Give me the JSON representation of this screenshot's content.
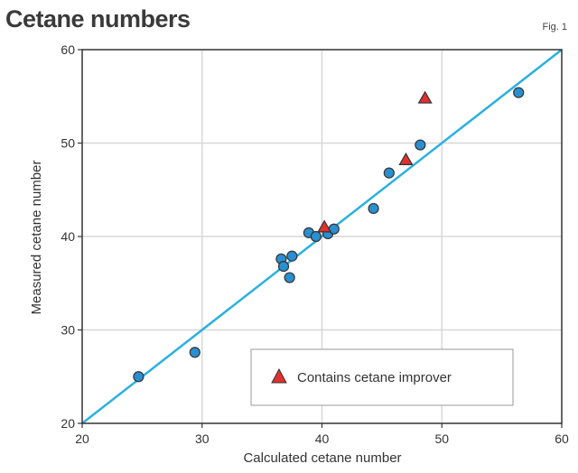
{
  "header": {
    "title": "Cetane numbers",
    "fig_label": "Fig. 1"
  },
  "colors": {
    "point_fill": "#2a8fd0",
    "improver_fill": "#e03030",
    "line": "#2ab0e0",
    "grid": "#d8d8d8",
    "axis": "#333333",
    "marker_stroke": "#333333"
  },
  "chart_data": {
    "type": "scatter",
    "title": "Cetane numbers",
    "xlabel": "Calculated cetane number",
    "ylabel": "Measured cetane number",
    "xlim": [
      20,
      60
    ],
    "ylim": [
      20,
      60
    ],
    "x_ticks": [
      "20",
      "30",
      "40",
      "50",
      "60"
    ],
    "y_ticks": [
      "20",
      "30",
      "40",
      "50",
      "60"
    ],
    "grid": true,
    "legend_position": "bottom-right",
    "reference_line": {
      "from": [
        20,
        20
      ],
      "to": [
        60,
        60
      ]
    },
    "series": [
      {
        "marker": "circle",
        "points": [
          [
            24.7,
            25.0
          ],
          [
            29.4,
            27.6
          ],
          [
            36.6,
            37.6
          ],
          [
            36.8,
            36.8
          ],
          [
            37.3,
            35.6
          ],
          [
            37.5,
            37.9
          ],
          [
            38.9,
            40.4
          ],
          [
            39.5,
            40.0
          ],
          [
            40.5,
            40.3
          ],
          [
            41.0,
            40.8
          ],
          [
            44.3,
            43.0
          ],
          [
            45.6,
            46.8
          ],
          [
            48.2,
            49.8
          ],
          [
            56.4,
            55.4
          ]
        ]
      },
      {
        "name": "Contains cetane improver",
        "marker": "triangle",
        "points": [
          [
            40.2,
            41.0
          ],
          [
            47.0,
            48.2
          ],
          [
            48.6,
            54.8
          ]
        ]
      }
    ]
  }
}
